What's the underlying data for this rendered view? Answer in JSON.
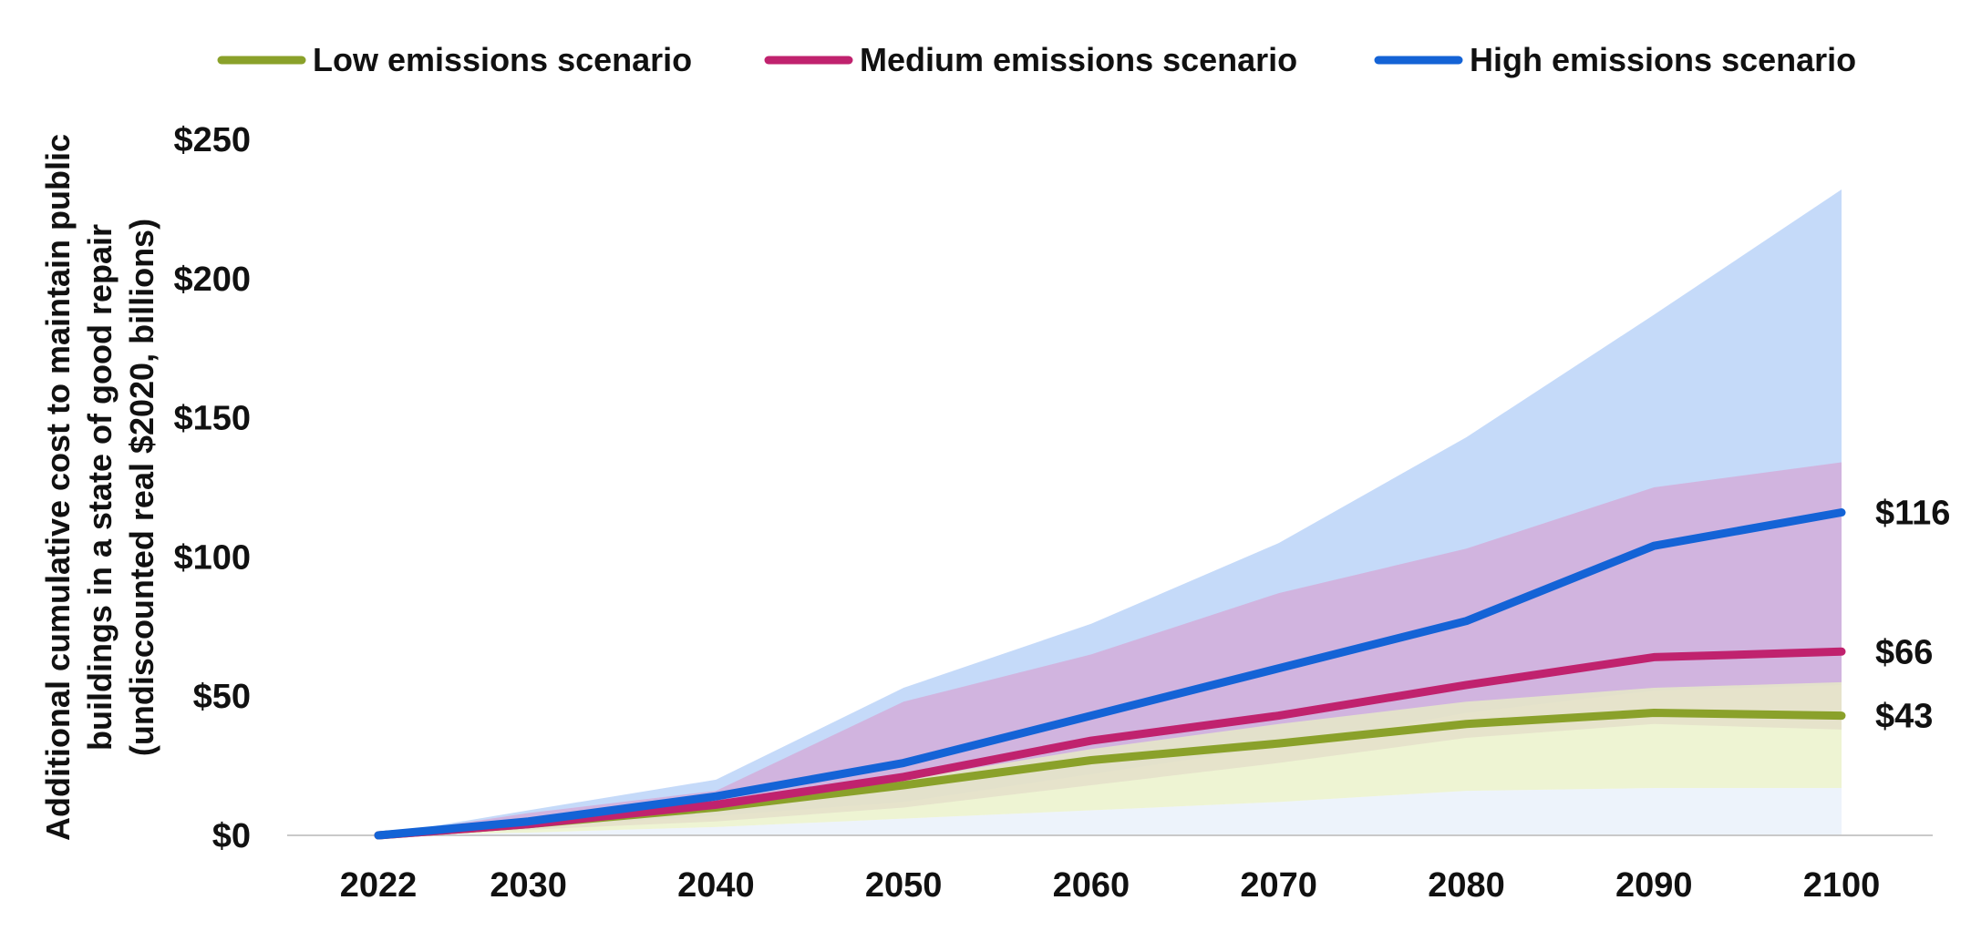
{
  "chart_data": {
    "type": "line",
    "title": "",
    "xlabel": "",
    "ylabel_lines": [
      "Additional cumulative cost to maintain public",
      "buildings in a state of good repair",
      "(undiscounted real $2020, billions)"
    ],
    "x": [
      2022,
      2030,
      2040,
      2050,
      2060,
      2070,
      2080,
      2090,
      2100
    ],
    "x_tick_labels": [
      "2022",
      "2030",
      "2040",
      "2050",
      "2060",
      "2070",
      "2080",
      "2090",
      "2100"
    ],
    "ylim": [
      0,
      250
    ],
    "y_ticks": [
      0,
      50,
      100,
      150,
      200,
      250
    ],
    "y_tick_labels": [
      "$0",
      "$50",
      "$100",
      "$150",
      "$200",
      "$250"
    ],
    "grid": false,
    "legend_position": "top",
    "series": [
      {
        "name": "Low emissions scenario",
        "color": "#8aa12a",
        "values": [
          0,
          4,
          10,
          18,
          27,
          33,
          40,
          44,
          43
        ],
        "end_label": "$43",
        "band_low": [
          0,
          1,
          3,
          6,
          9,
          12,
          16,
          17,
          17
        ],
        "band_high": [
          0,
          4,
          11,
          20,
          31,
          40,
          48,
          53,
          55
        ],
        "band_color": "#e8f0c4"
      },
      {
        "name": "Medium emissions scenario",
        "color": "#c0226e",
        "values": [
          0,
          4,
          11,
          21,
          34,
          43,
          54,
          64,
          66
        ],
        "end_label": "$66",
        "band_low": [
          0,
          2,
          5,
          10,
          18,
          26,
          35,
          40,
          38
        ],
        "band_high": [
          0,
          8,
          16,
          48,
          65,
          87,
          103,
          125,
          134
        ],
        "band_color": "#d4a7d6"
      },
      {
        "name": "High emissions scenario",
        "color": "#1463d6",
        "values": [
          0,
          5,
          14,
          26,
          43,
          60,
          77,
          104,
          116
        ],
        "end_label": "$116",
        "band_low": [
          0,
          3,
          7,
          12,
          22,
          32,
          44,
          52,
          54
        ],
        "band_high": [
          0,
          9,
          20,
          53,
          76,
          105,
          143,
          187,
          232
        ],
        "band_color": "#b1cef7"
      }
    ]
  }
}
